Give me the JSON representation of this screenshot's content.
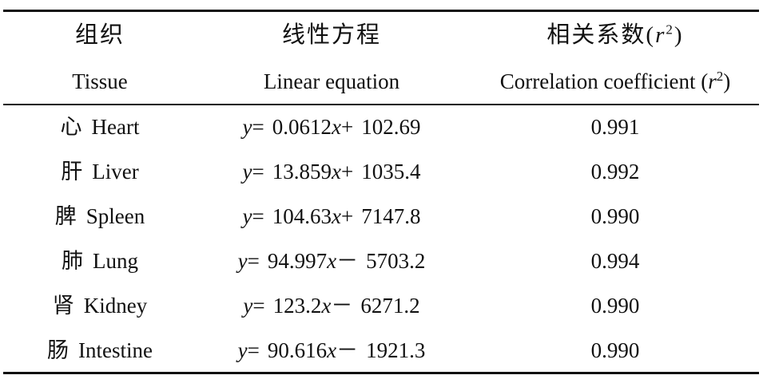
{
  "table": {
    "headers": {
      "tissue_zh": "组织",
      "tissue_en": "Tissue",
      "equation_zh": "线性方程",
      "equation_en": "Linear equation",
      "r2_zh_prefix": "相关系数(",
      "r2_symbol": "r",
      "r2_exp": "2",
      "r2_zh_suffix": ")",
      "r2_en_prefix": "Correlation coefficient (",
      "r2_en_suffix": ")"
    },
    "rows": [
      {
        "tissue_zh": "心",
        "tissue_en": "Heart",
        "slope": "0.0612",
        "op": "+",
        "intercept": "102.69",
        "r2": "0.991"
      },
      {
        "tissue_zh": "肝",
        "tissue_en": "Liver",
        "slope": "13.859",
        "op": "+",
        "intercept": "1035.4",
        "r2": "0.992"
      },
      {
        "tissue_zh": "脾",
        "tissue_en": "Spleen",
        "slope": "104.63",
        "op": "+",
        "intercept": "7147.8",
        "r2": "0.990"
      },
      {
        "tissue_zh": "肺",
        "tissue_en": "Lung",
        "slope": "94.997",
        "op": "－",
        "intercept": "5703.2",
        "r2": "0.994"
      },
      {
        "tissue_zh": "肾",
        "tissue_en": "Kidney",
        "slope": "123.2",
        "op": "－",
        "intercept": "6271.2",
        "r2": "0.990"
      },
      {
        "tissue_zh": "肠",
        "tissue_en": "Intestine",
        "slope": "90.616",
        "op": "－",
        "intercept": "1921.3",
        "r2": "0.990"
      }
    ],
    "equation_parts": {
      "y": "y",
      "equals": "=",
      "x": "x"
    }
  }
}
